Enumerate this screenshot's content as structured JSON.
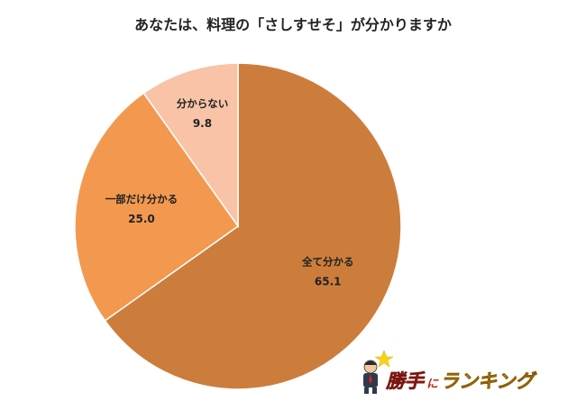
{
  "chart_data": {
    "type": "pie",
    "title": "あなたは、料理の「さしすせそ」が分かりますか",
    "slices": [
      {
        "label": "全て分かる",
        "value": 65.1,
        "color": "#cc7d3c"
      },
      {
        "label": "一部だけ分かる",
        "value": 25.0,
        "color": "#f2994f"
      },
      {
        "label": "分からない",
        "value": 9.8,
        "color": "#f8c3a7"
      }
    ],
    "start_angle_deg": 0,
    "direction": "clockwise",
    "data_labels": "inside"
  },
  "logo": {
    "text_main": "勝手",
    "text_small": "に",
    "text_tail": "ランキング"
  }
}
